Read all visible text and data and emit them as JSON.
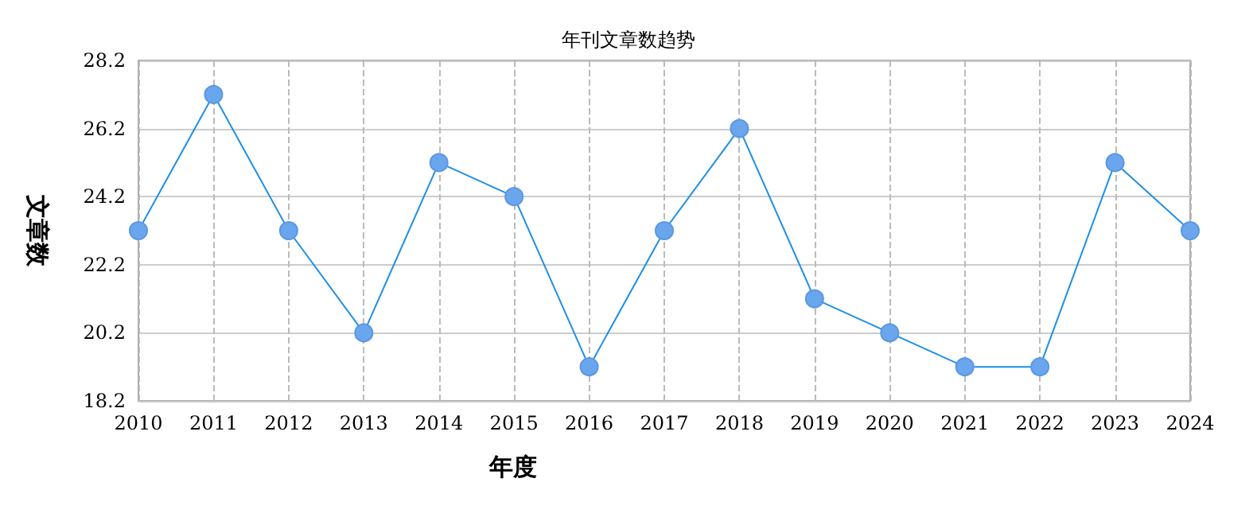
{
  "chart_data": {
    "type": "line",
    "title": "年刊文章数趋势",
    "xlabel": "年度",
    "ylabel": "文章数",
    "categories": [
      "2010",
      "2011",
      "2012",
      "2013",
      "2014",
      "2015",
      "2016",
      "2017",
      "2018",
      "2019",
      "2020",
      "2021",
      "2022",
      "2023",
      "2024"
    ],
    "series": [
      {
        "color": "#1e8fe6",
        "values": [
          23.2,
          27.2,
          23.2,
          20.2,
          25.2,
          24.2,
          19.2,
          23.2,
          26.2,
          21.2,
          20.2,
          19.2,
          19.2,
          25.2,
          23.2
        ]
      }
    ],
    "ylim": [
      18.2,
      28.2
    ],
    "yticks": [
      18.2,
      20.2,
      22.2,
      24.2,
      26.2,
      28.2
    ],
    "grid": true,
    "marker": "circle",
    "line_style": "solid"
  }
}
